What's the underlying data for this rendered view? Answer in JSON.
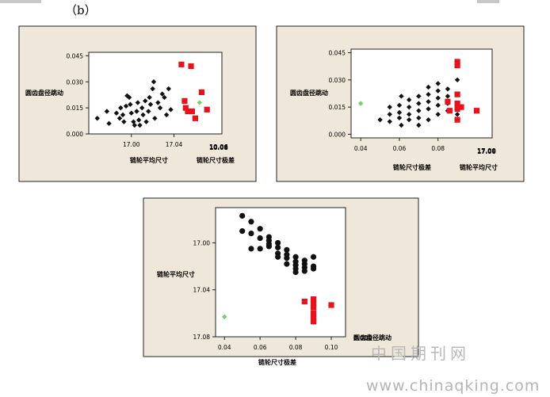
{
  "panel_label": "（b）",
  "watermark": {
    "cn": "中国期刊网",
    "url": "www.chinaqking.com"
  },
  "colors": {
    "frame_bg": "#efe7d9",
    "black": "#111111",
    "red": "#e8121d",
    "green": "#6fd36a"
  },
  "chart_data": [
    {
      "type": "scatter",
      "xlabel": "链轮平均尺寸",
      "ylabel": "圆齿盘径跳动",
      "corner_label": "链轮尺寸极差",
      "corner_ticks": [
        "10.06",
        "10.08"
      ],
      "xlim": [
        16.96,
        17.085
      ],
      "ylim": [
        0,
        0.047
      ],
      "xticks": [
        17.0,
        17.04
      ],
      "xtick_labels": [
        "17.00",
        "17.04"
      ],
      "yticks": [
        0,
        0.015,
        0.03,
        0.045
      ],
      "ytick_labels": [
        "0.000",
        "0.015",
        "0.030",
        "0.045"
      ],
      "series": [
        {
          "color": "black",
          "marker": "diamond",
          "points": [
            [
              16.968,
              0.009
            ],
            [
              16.977,
              0.013
            ],
            [
              16.979,
              0.006
            ],
            [
              16.986,
              0.012
            ],
            [
              16.989,
              0.009
            ],
            [
              16.99,
              0.015
            ],
            [
              16.993,
              0.007
            ],
            [
              16.992,
              0.011
            ],
            [
              16.995,
              0.016
            ],
            [
              16.996,
              0.022
            ],
            [
              16.998,
              0.021
            ],
            [
              16.999,
              0.017
            ],
            [
              17.0,
              0.012
            ],
            [
              17.002,
              0.007
            ],
            [
              17.003,
              0.005
            ],
            [
              17.005,
              0.013
            ],
            [
              17.006,
              0.018
            ],
            [
              17.007,
              0.008
            ],
            [
              17.008,
              0.005
            ],
            [
              17.01,
              0.015
            ],
            [
              17.011,
              0.011
            ],
            [
              17.013,
              0.019
            ],
            [
              17.014,
              0.007
            ],
            [
              17.016,
              0.013
            ],
            [
              17.017,
              0.021
            ],
            [
              17.018,
              0.017
            ],
            [
              17.02,
              0.026
            ],
            [
              17.021,
              0.03
            ],
            [
              17.022,
              0.009
            ],
            [
              17.025,
              0.018
            ],
            [
              17.027,
              0.015
            ],
            [
              17.029,
              0.023
            ],
            [
              17.031,
              0.021
            ],
            [
              17.033,
              0.011
            ],
            [
              17.035,
              0.026
            ],
            [
              17.037,
              0.014
            ]
          ]
        },
        {
          "color": "red",
          "marker": "square",
          "points": [
            [
              17.047,
              0.04
            ],
            [
              17.05,
              0.019
            ],
            [
              17.051,
              0.015
            ],
            [
              17.053,
              0.013
            ],
            [
              17.056,
              0.039
            ],
            [
              17.057,
              0.013
            ],
            [
              17.06,
              0.009
            ],
            [
              17.066,
              0.024
            ],
            [
              17.071,
              0.014
            ]
          ]
        },
        {
          "color": "green",
          "marker": "diamond",
          "points": [
            [
              17.064,
              0.018
            ]
          ]
        }
      ]
    },
    {
      "type": "scatter",
      "xlabel": "链轮尺寸极差",
      "ylabel": "圆齿盘径跳动",
      "corner_label": "链轮平均尺寸",
      "corner_ticks": [
        "17.00",
        "17.06"
      ],
      "xlim": [
        0.035,
        0.108
      ],
      "ylim": [
        -0.002,
        0.047
      ],
      "xticks": [
        0.04,
        0.06,
        0.08
      ],
      "xtick_labels": [
        "0.04",
        "0.06",
        "0.08"
      ],
      "yticks": [
        0,
        0.015,
        0.03,
        0.045
      ],
      "ytick_labels": [
        "0.000",
        "0.015",
        "0.030",
        "0.045"
      ],
      "series": [
        {
          "color": "black",
          "marker": "diamond",
          "points": [
            [
              0.05,
              0.008
            ],
            [
              0.055,
              0.011
            ],
            [
              0.055,
              0.015
            ],
            [
              0.055,
              0.007
            ],
            [
              0.06,
              0.016
            ],
            [
              0.06,
              0.012
            ],
            [
              0.06,
              0.009
            ],
            [
              0.061,
              0.021
            ],
            [
              0.061,
              0.005
            ],
            [
              0.065,
              0.011
            ],
            [
              0.065,
              0.015
            ],
            [
              0.065,
              0.019
            ],
            [
              0.065,
              0.008
            ],
            [
              0.07,
              0.013
            ],
            [
              0.07,
              0.017
            ],
            [
              0.07,
              0.021
            ],
            [
              0.07,
              0.009
            ],
            [
              0.07,
              0.005
            ],
            [
              0.075,
              0.014
            ],
            [
              0.075,
              0.018
            ],
            [
              0.075,
              0.022
            ],
            [
              0.075,
              0.026
            ],
            [
              0.075,
              0.008
            ],
            [
              0.08,
              0.011
            ],
            [
              0.08,
              0.016
            ],
            [
              0.08,
              0.02
            ],
            [
              0.08,
              0.024
            ],
            [
              0.08,
              0.028
            ],
            [
              0.085,
              0.013
            ],
            [
              0.085,
              0.017
            ],
            [
              0.085,
              0.021
            ],
            [
              0.085,
              0.025
            ],
            [
              0.09,
              0.017
            ],
            [
              0.09,
              0.011
            ],
            [
              0.09,
              0.03
            ]
          ]
        },
        {
          "color": "red",
          "marker": "square",
          "points": [
            [
              0.085,
              0.018
            ],
            [
              0.086,
              0.013
            ],
            [
              0.09,
              0.04
            ],
            [
              0.09,
              0.038
            ],
            [
              0.09,
              0.022
            ],
            [
              0.09,
              0.017
            ],
            [
              0.09,
              0.014
            ],
            [
              0.092,
              0.015
            ],
            [
              0.09,
              0.008
            ],
            [
              0.1,
              0.013
            ]
          ]
        },
        {
          "color": "green",
          "marker": "diamond",
          "points": [
            [
              0.04,
              0.017
            ]
          ]
        }
      ]
    },
    {
      "type": "scatter",
      "xlabel": "链轮尺寸极差",
      "ylabel": "链轮平均尺寸",
      "corner_label": "圆齿盘径跳动",
      "corner_ticks": [
        "0.000"
      ],
      "xlim": [
        0.035,
        0.108
      ],
      "ylim": [
        17.08,
        16.97
      ],
      "xticks": [
        0.04,
        0.06,
        0.08,
        0.1
      ],
      "xtick_labels": [
        "0.04",
        "0.06",
        "0.08",
        "0.10"
      ],
      "yticks": [
        17.0,
        17.04,
        17.08
      ],
      "ytick_labels": [
        "17.00",
        "17.04",
        "17.08"
      ],
      "series": [
        {
          "color": "black",
          "marker": "circle",
          "points": [
            [
              0.05,
              16.977
            ],
            [
              0.055,
              16.982
            ],
            [
              0.055,
              16.992
            ],
            [
              0.06,
              16.988
            ],
            [
              0.06,
              16.996
            ],
            [
              0.06,
              17.005
            ],
            [
              0.065,
              16.995
            ],
            [
              0.065,
              17.001
            ],
            [
              0.065,
              17.003
            ],
            [
              0.07,
              17.0
            ],
            [
              0.07,
              17.004
            ],
            [
              0.07,
              17.009
            ],
            [
              0.07,
              17.012
            ],
            [
              0.075,
              17.006
            ],
            [
              0.075,
              17.01
            ],
            [
              0.075,
              17.013
            ],
            [
              0.075,
              17.018
            ],
            [
              0.08,
              17.012
            ],
            [
              0.08,
              17.016
            ],
            [
              0.08,
              17.019
            ],
            [
              0.08,
              17.022
            ],
            [
              0.08,
              17.025
            ],
            [
              0.085,
              17.015
            ],
            [
              0.085,
              17.018
            ],
            [
              0.085,
              17.021
            ],
            [
              0.085,
              17.024
            ],
            [
              0.09,
              17.012
            ],
            [
              0.09,
              17.02
            ],
            [
              0.09,
              17.022
            ],
            [
              0.05,
              16.99
            ],
            [
              0.055,
              17.005
            ],
            [
              0.065,
              16.998
            ]
          ]
        },
        {
          "color": "red",
          "marker": "square",
          "points": [
            [
              0.085,
              17.05
            ],
            [
              0.09,
              17.048
            ],
            [
              0.09,
              17.052
            ],
            [
              0.09,
              17.055
            ],
            [
              0.09,
              17.06
            ],
            [
              0.09,
              17.064
            ],
            [
              0.09,
              17.067
            ],
            [
              0.1,
              17.053
            ]
          ]
        },
        {
          "color": "green",
          "marker": "diamond",
          "points": [
            [
              0.04,
              17.063
            ]
          ]
        }
      ]
    }
  ]
}
